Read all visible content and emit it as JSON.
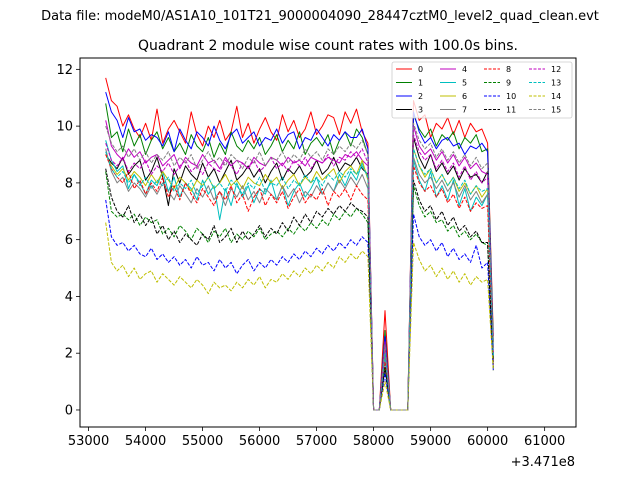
{
  "figure": {
    "suptitle": "Data file: modeM0/AS1A10_101T21_9000004090_28447cztM0_level2_quad_clean.evt",
    "title": "Quadrant 2 module wise count rates with 100.0s bins.",
    "offset_label": "+3.471e8"
  },
  "chart_data": {
    "type": "line",
    "title": "Quadrant 2 module wise count rates with 100.0s bins.",
    "xlabel": "",
    "ylabel": "",
    "x_offset": 347100000,
    "xlim": [
      52850,
      61550
    ],
    "ylim": [
      -0.6,
      12.4
    ],
    "xticks": [
      53000,
      54000,
      55000,
      56000,
      57000,
      58000,
      59000,
      60000,
      61000
    ],
    "xtick_labels": [
      "53000",
      "54000",
      "55000",
      "56000",
      "57000",
      "58000",
      "59000",
      "60000",
      "61000"
    ],
    "yticks": [
      0,
      2,
      4,
      6,
      8,
      10,
      12
    ],
    "ytick_labels": [
      "0",
      "2",
      "4",
      "6",
      "8",
      "10",
      "12"
    ],
    "legend_loc": "upper right",
    "x_start": 53300,
    "x_step": 100,
    "series": [
      {
        "name": "0",
        "color": "#ff0000",
        "dash": "solid",
        "values": [
          11.7,
          10.9,
          10.7,
          10.0,
          10.4,
          9.9,
          9.6,
          10.1,
          9.5,
          10.6,
          9.4,
          9.9,
          10.2,
          9.8,
          9.4,
          10.5,
          9.7,
          9.3,
          10.0,
          9.6,
          10.2,
          9.5,
          9.8,
          10.7,
          9.6,
          10.1,
          9.4,
          9.9,
          10.3,
          9.8,
          9.5,
          10.4,
          9.8,
          10.2,
          9.6,
          9.9,
          10.5,
          9.7,
          10.0,
          10.4,
          10.3,
          9.7,
          10.5,
          10.1,
          10.6,
          9.8,
          9.4,
          0.0,
          0.0,
          3.5,
          0.0,
          0.0,
          0.0,
          0.0,
          10.9,
          10.2,
          10.4,
          9.6,
          10.1,
          9.9,
          10.3,
          9.7,
          10.2,
          9.6,
          10.1,
          9.8,
          9.9,
          9.4,
          2.6
        ]
      },
      {
        "name": "1",
        "color": "#008000",
        "dash": "solid",
        "values": [
          10.8,
          9.6,
          9.8,
          9.1,
          9.9,
          9.3,
          9.7,
          9.0,
          9.5,
          9.8,
          9.2,
          9.6,
          9.1,
          9.4,
          9.0,
          9.7,
          9.3,
          9.1,
          9.6,
          8.9,
          9.4,
          9.0,
          9.8,
          9.3,
          9.1,
          9.5,
          9.2,
          9.6,
          9.0,
          9.3,
          9.7,
          9.1,
          9.5,
          9.2,
          9.8,
          9.0,
          9.4,
          9.6,
          9.3,
          9.7,
          9.0,
          9.5,
          9.8,
          9.3,
          9.9,
          9.6,
          9.0,
          0.0,
          0.0,
          2.8,
          0.0,
          0.0,
          0.0,
          0.0,
          10.4,
          9.9,
          9.6,
          9.9,
          9.3,
          9.7,
          9.5,
          9.8,
          9.2,
          9.6,
          9.4,
          9.7,
          9.1,
          9.2,
          2.4
        ]
      },
      {
        "name": "2",
        "color": "#0000ff",
        "dash": "solid",
        "values": [
          11.2,
          10.5,
          10.2,
          9.6,
          10.3,
          9.8,
          9.9,
          9.5,
          9.7,
          9.6,
          9.3,
          9.8,
          9.1,
          9.9,
          9.5,
          9.2,
          9.8,
          9.6,
          9.3,
          10.0,
          9.5,
          9.2,
          9.7,
          9.9,
          9.4,
          9.6,
          9.8,
          9.3,
          9.6,
          9.5,
          9.9,
          9.4,
          9.7,
          9.8,
          9.2,
          9.6,
          9.5,
          9.9,
          9.6,
          9.3,
          9.7,
          9.5,
          9.8,
          9.6,
          9.6,
          9.9,
          9.2,
          0.0,
          0.0,
          2.6,
          0.0,
          0.0,
          0.0,
          0.0,
          10.5,
          9.8,
          9.4,
          9.6,
          9.2,
          9.5,
          9.6,
          9.3,
          9.4,
          9.0,
          9.3,
          9.2,
          9.4,
          9.1,
          2.2
        ]
      },
      {
        "name": "3",
        "color": "#000000",
        "dash": "solid",
        "values": [
          9.0,
          8.7,
          8.5,
          8.9,
          8.3,
          8.6,
          8.8,
          8.1,
          8.4,
          8.9,
          8.2,
          7.2,
          8.5,
          8.0,
          8.6,
          8.3,
          8.1,
          8.7,
          8.2,
          8.5,
          8.0,
          8.4,
          8.8,
          8.1,
          8.3,
          8.6,
          8.2,
          8.5,
          8.0,
          8.4,
          8.7,
          8.1,
          8.5,
          8.3,
          8.6,
          8.2,
          8.4,
          8.8,
          8.3,
          8.5,
          8.9,
          8.4,
          8.7,
          8.6,
          8.9,
          8.5,
          8.3,
          0.0,
          0.0,
          2.2,
          0.0,
          0.0,
          0.0,
          0.0,
          9.6,
          8.9,
          8.5,
          9.0,
          8.4,
          8.7,
          8.3,
          8.6,
          8.1,
          8.5,
          8.2,
          8.3,
          8.0,
          8.4,
          1.8
        ]
      },
      {
        "name": "4",
        "color": "#bf00bf",
        "dash": "solid",
        "values": [
          10.2,
          9.3,
          9.0,
          8.8,
          9.2,
          8.9,
          9.1,
          8.7,
          8.9,
          9.0,
          8.6,
          8.8,
          9.0,
          8.5,
          8.9,
          8.7,
          8.6,
          9.0,
          8.7,
          8.8,
          8.5,
          8.9,
          8.6,
          8.8,
          8.7,
          8.5,
          8.9,
          8.7,
          8.6,
          8.9,
          8.8,
          8.6,
          8.9,
          8.7,
          8.8,
          8.6,
          8.9,
          8.8,
          8.7,
          8.9,
          8.8,
          8.7,
          9.0,
          8.9,
          9.1,
          8.8,
          8.6,
          0.0,
          0.0,
          2.4,
          0.0,
          0.0,
          0.0,
          0.0,
          10.0,
          9.3,
          9.0,
          9.2,
          8.8,
          9.1,
          8.7,
          9.0,
          8.6,
          8.9,
          8.5,
          8.7,
          8.4,
          8.3,
          2.0
        ]
      },
      {
        "name": "5",
        "color": "#00bfbf",
        "dash": "solid",
        "values": [
          9.5,
          8.8,
          8.4,
          8.6,
          7.8,
          8.3,
          8.0,
          7.6,
          8.1,
          7.9,
          8.4,
          7.7,
          8.2,
          7.5,
          8.0,
          7.8,
          7.4,
          8.1,
          7.6,
          7.9,
          6.7,
          7.8,
          7.2,
          8.0,
          7.5,
          7.9,
          7.3,
          7.8,
          7.6,
          8.1,
          7.4,
          7.9,
          7.2,
          7.7,
          8.0,
          7.5,
          7.8,
          8.2,
          7.6,
          8.0,
          7.7,
          8.3,
          7.9,
          8.4,
          8.1,
          8.7,
          8.2,
          0.0,
          0.0,
          1.8,
          0.0,
          0.0,
          0.0,
          0.0,
          8.8,
          8.1,
          7.7,
          8.4,
          7.5,
          7.9,
          7.4,
          8.1,
          7.2,
          7.8,
          7.0,
          7.5,
          7.2,
          7.6,
          1.7
        ]
      },
      {
        "name": "6",
        "color": "#bfbf00",
        "dash": "solid",
        "values": [
          9.0,
          8.6,
          8.3,
          8.5,
          8.1,
          8.4,
          8.2,
          7.9,
          8.3,
          8.0,
          8.4,
          8.1,
          7.8,
          8.2,
          8.0,
          7.7,
          8.1,
          7.9,
          8.2,
          7.8,
          8.0,
          8.3,
          7.9,
          8.1,
          7.8,
          8.2,
          8.0,
          7.9,
          8.3,
          8.0,
          8.2,
          7.8,
          8.1,
          8.3,
          7.9,
          8.2,
          8.0,
          8.4,
          8.1,
          8.3,
          8.5,
          8.0,
          8.4,
          8.6,
          8.3,
          8.8,
          8.1,
          0.0,
          0.0,
          1.9,
          0.0,
          0.0,
          0.0,
          0.0,
          9.2,
          8.6,
          8.2,
          8.5,
          8.0,
          8.3,
          7.9,
          8.2,
          7.7,
          8.0,
          7.6,
          7.9,
          7.5,
          7.8,
          1.8
        ]
      },
      {
        "name": "7",
        "color": "#808080",
        "dash": "solid",
        "values": [
          9.2,
          8.4,
          8.0,
          8.2,
          7.7,
          8.0,
          7.8,
          7.5,
          7.9,
          7.6,
          8.0,
          7.7,
          7.4,
          7.9,
          7.6,
          7.3,
          7.8,
          7.5,
          7.9,
          7.4,
          7.7,
          7.2,
          7.8,
          7.5,
          7.9,
          7.4,
          7.7,
          7.3,
          7.8,
          7.6,
          7.4,
          7.9,
          7.5,
          7.8,
          7.3,
          7.7,
          7.5,
          7.9,
          7.6,
          8.0,
          7.7,
          8.1,
          7.8,
          8.2,
          7.9,
          8.3,
          7.8,
          0.0,
          0.0,
          1.8,
          0.0,
          0.0,
          0.0,
          0.0,
          8.9,
          8.3,
          8.0,
          8.2,
          7.8,
          8.1,
          7.7,
          8.0,
          7.5,
          7.9,
          7.4,
          7.7,
          7.3,
          7.6,
          1.7
        ]
      },
      {
        "name": "8",
        "color": "#ff0000",
        "dash": "dashed",
        "values": [
          9.0,
          8.5,
          8.2,
          8.0,
          8.4,
          7.8,
          8.1,
          7.6,
          8.0,
          7.7,
          8.2,
          7.5,
          7.9,
          7.4,
          8.0,
          7.6,
          7.3,
          7.8,
          7.5,
          7.2,
          7.7,
          7.4,
          7.9,
          7.3,
          7.6,
          7.0,
          7.5,
          7.8,
          7.2,
          7.6,
          7.3,
          7.7,
          7.1,
          7.5,
          7.8,
          7.3,
          7.6,
          7.4,
          7.8,
          7.2,
          7.7,
          7.5,
          7.8,
          7.4,
          7.9,
          7.6,
          7.4,
          0.0,
          0.0,
          1.7,
          0.0,
          0.0,
          0.0,
          0.0,
          8.6,
          8.0,
          7.7,
          7.9,
          7.5,
          7.8,
          7.3,
          7.6,
          7.1,
          7.5,
          7.0,
          7.3,
          7.1,
          7.2,
          1.6
        ]
      },
      {
        "name": "9",
        "color": "#008000",
        "dash": "dashed",
        "values": [
          8.4,
          7.0,
          6.8,
          6.9,
          6.7,
          6.9,
          6.5,
          6.8,
          6.6,
          6.7,
          6.2,
          6.4,
          6.1,
          6.5,
          6.3,
          6.0,
          6.4,
          6.2,
          5.9,
          6.3,
          6.1,
          6.4,
          5.9,
          6.2,
          6.0,
          6.3,
          6.1,
          6.4,
          6.0,
          6.2,
          6.3,
          6.1,
          6.4,
          6.2,
          6.5,
          6.3,
          6.6,
          6.4,
          6.7,
          6.5,
          6.9,
          6.7,
          7.0,
          6.8,
          7.1,
          6.9,
          6.6,
          0.0,
          0.0,
          1.5,
          0.0,
          0.0,
          0.0,
          0.0,
          7.9,
          7.2,
          6.8,
          7.0,
          6.6,
          6.7,
          6.3,
          6.5,
          6.1,
          6.3,
          6.0,
          6.2,
          5.9,
          5.8,
          1.4
        ]
      },
      {
        "name": "10",
        "color": "#0000ff",
        "dash": "dashed",
        "values": [
          7.4,
          6.1,
          5.8,
          5.9,
          5.6,
          5.8,
          5.5,
          5.4,
          5.7,
          5.3,
          5.5,
          5.2,
          5.4,
          5.1,
          5.3,
          5.0,
          5.4,
          5.1,
          5.2,
          4.9,
          5.3,
          5.0,
          5.2,
          4.8,
          5.1,
          5.3,
          4.9,
          5.2,
          5.0,
          5.3,
          5.1,
          5.4,
          5.2,
          5.5,
          5.3,
          5.6,
          5.4,
          5.7,
          5.5,
          5.8,
          5.6,
          5.9,
          5.7,
          6.0,
          5.8,
          6.1,
          5.9,
          0.0,
          0.0,
          1.3,
          0.0,
          0.0,
          0.0,
          0.0,
          6.9,
          6.1,
          5.8,
          6.0,
          5.6,
          5.9,
          5.4,
          5.7,
          5.3,
          5.5,
          5.2,
          5.8,
          5.0,
          5.2,
          1.4
        ]
      },
      {
        "name": "11",
        "color": "#000000",
        "dash": "dashed",
        "values": [
          8.5,
          7.5,
          7.0,
          6.8,
          7.2,
          6.6,
          6.9,
          6.5,
          6.8,
          6.2,
          6.5,
          6.0,
          6.3,
          5.9,
          6.2,
          6.0,
          5.8,
          6.2,
          6.0,
          6.5,
          5.9,
          6.1,
          6.4,
          5.9,
          6.3,
          6.0,
          6.2,
          6.5,
          6.1,
          6.4,
          6.2,
          6.6,
          6.3,
          6.8,
          6.5,
          6.9,
          6.6,
          7.0,
          6.8,
          7.1,
          6.9,
          7.2,
          7.0,
          7.3,
          7.1,
          7.0,
          6.8,
          0.0,
          0.0,
          1.5,
          0.0,
          0.0,
          0.0,
          0.0,
          8.1,
          7.4,
          7.0,
          7.2,
          6.7,
          7.0,
          6.5,
          6.8,
          6.3,
          6.5,
          6.1,
          6.3,
          5.9,
          5.9,
          1.5
        ]
      },
      {
        "name": "12",
        "color": "#bf00bf",
        "dash": "dashed",
        "values": [
          9.4,
          8.8,
          8.6,
          8.9,
          8.4,
          8.7,
          8.5,
          8.8,
          8.3,
          8.6,
          8.4,
          8.7,
          8.3,
          8.6,
          8.8,
          8.4,
          8.6,
          8.3,
          8.7,
          8.5,
          8.4,
          8.8,
          8.6,
          8.3,
          8.7,
          8.5,
          8.8,
          8.4,
          8.6,
          8.9,
          8.5,
          8.7,
          8.4,
          8.8,
          8.6,
          8.9,
          8.5,
          8.8,
          8.7,
          9.0,
          8.6,
          8.9,
          8.8,
          9.1,
          8.9,
          9.2,
          8.7,
          0.0,
          0.0,
          2.2,
          0.0,
          0.0,
          0.0,
          0.0,
          9.7,
          9.1,
          8.8,
          9.0,
          8.5,
          8.8,
          8.4,
          8.7,
          8.2,
          8.6,
          8.1,
          8.4,
          8.0,
          8.2,
          2.0
        ]
      },
      {
        "name": "13",
        "color": "#00bfbf",
        "dash": "dashed",
        "values": [
          9.1,
          8.5,
          8.2,
          8.4,
          8.0,
          8.3,
          7.9,
          8.2,
          7.8,
          8.1,
          7.9,
          8.2,
          7.7,
          8.0,
          7.8,
          8.1,
          7.6,
          7.9,
          8.2,
          7.8,
          8.0,
          7.7,
          8.1,
          7.9,
          7.6,
          8.0,
          7.8,
          8.2,
          7.7,
          8.0,
          7.9,
          8.2,
          7.8,
          8.1,
          7.9,
          8.3,
          8.0,
          8.2,
          7.9,
          8.3,
          8.1,
          8.4,
          8.2,
          8.5,
          8.3,
          8.6,
          8.2,
          0.0,
          0.0,
          2.0,
          0.0,
          0.0,
          0.0,
          0.0,
          9.2,
          8.6,
          8.3,
          8.5,
          8.0,
          8.3,
          7.9,
          8.2,
          7.8,
          8.1,
          7.6,
          7.9,
          7.7,
          7.8,
          1.9
        ]
      },
      {
        "name": "14",
        "color": "#bfbf00",
        "dash": "dashed",
        "values": [
          6.6,
          5.2,
          4.9,
          5.1,
          4.7,
          5.0,
          4.6,
          4.8,
          4.9,
          4.5,
          4.8,
          4.6,
          4.4,
          4.7,
          4.5,
          4.3,
          4.6,
          4.4,
          4.1,
          4.5,
          4.3,
          4.4,
          4.2,
          4.5,
          4.3,
          4.6,
          4.4,
          4.7,
          4.3,
          4.6,
          4.5,
          4.8,
          4.6,
          4.9,
          4.7,
          5.0,
          4.8,
          5.1,
          4.9,
          5.2,
          5.0,
          5.4,
          5.2,
          5.5,
          5.3,
          5.6,
          5.4,
          0.0,
          0.0,
          1.0,
          0.0,
          0.0,
          0.0,
          0.0,
          5.9,
          5.3,
          4.9,
          5.1,
          4.7,
          5.0,
          4.6,
          4.9,
          4.5,
          4.8,
          4.4,
          4.7,
          4.5,
          4.6,
          1.4
        ]
      },
      {
        "name": "15",
        "color": "#808080",
        "dash": "dashed",
        "values": [
          10.0,
          9.4,
          9.1,
          9.3,
          8.9,
          9.2,
          8.8,
          9.1,
          8.7,
          9.0,
          8.8,
          9.1,
          8.6,
          8.9,
          8.7,
          9.0,
          8.5,
          8.8,
          9.1,
          8.7,
          8.9,
          8.6,
          9.0,
          8.8,
          8.5,
          8.9,
          8.7,
          9.1,
          8.6,
          8.9,
          8.8,
          9.1,
          8.7,
          9.0,
          8.8,
          9.2,
          8.9,
          9.1,
          8.8,
          9.2,
          9.0,
          9.3,
          9.1,
          9.4,
          9.2,
          9.5,
          9.0,
          0.0,
          0.0,
          2.3,
          0.0,
          0.0,
          0.0,
          0.0,
          10.1,
          9.5,
          9.2,
          9.4,
          8.9,
          9.2,
          8.8,
          9.1,
          8.7,
          9.0,
          8.6,
          8.9,
          8.5,
          8.7,
          2.1
        ]
      }
    ]
  }
}
